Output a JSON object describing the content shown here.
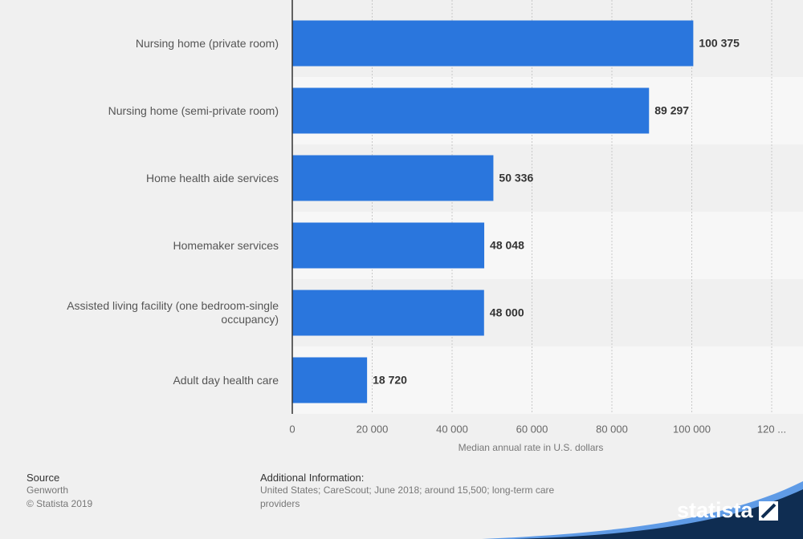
{
  "chart_data": {
    "type": "bar",
    "orientation": "horizontal",
    "categories": [
      "Nursing home (private room)",
      "Nursing home (semi-private room)",
      "Home health aide services",
      "Homemaker services",
      "Assisted living facility (one bedroom-single occupancy)",
      "Adult day health care"
    ],
    "values": [
      100375,
      89297,
      50336,
      48048,
      48000,
      18720
    ],
    "value_labels": [
      "100 375",
      "89 297",
      "50 336",
      "48 048",
      "48 000",
      "18 720"
    ],
    "color": "#2a76dd",
    "xlim": [
      0,
      120000
    ],
    "xticks": [
      0,
      {
        "value": 20000,
        "label": "20 000"
      },
      {
        "value": 40000,
        "label": "40 000"
      },
      {
        "value": 60000,
        "label": "60 000"
      },
      {
        "value": 80000,
        "label": "80 000"
      },
      {
        "value": 100000,
        "label": "100 000"
      },
      {
        "value": 120000,
        "label": "120 ..."
      }
    ],
    "xlabel": "Median annual rate in U.S. dollars",
    "grid": true
  },
  "footer": {
    "source_title": "Source",
    "source": "Genworth",
    "copyright": "© Statista 2019",
    "info_title": "Additional Information:",
    "info": "United States; CareScout; June 2018; around 15,500; long-term care providers",
    "logo": "statista"
  }
}
